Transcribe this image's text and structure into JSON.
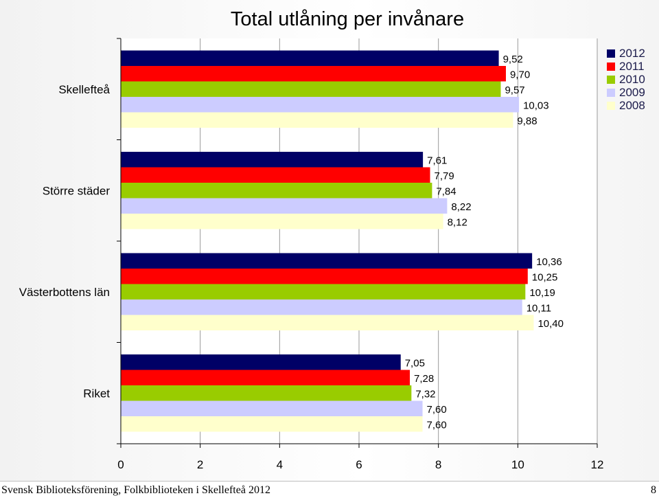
{
  "chart_data": {
    "type": "bar",
    "orientation": "horizontal",
    "title": "Total utlåning per invånare",
    "categories": [
      "Skellefteå",
      "Större städer",
      "Västerbottens län",
      "Riket"
    ],
    "series": [
      {
        "name": "2012",
        "color": "#000066",
        "values": [
          9.52,
          7.61,
          10.36,
          7.05
        ],
        "labels": [
          "9,52",
          "7,61",
          "10,36",
          "7,05"
        ]
      },
      {
        "name": "2011",
        "color": "#ff0000",
        "values": [
          9.7,
          7.79,
          10.25,
          7.28
        ],
        "labels": [
          "9,70",
          "7,79",
          "10,25",
          "7,28"
        ]
      },
      {
        "name": "2010",
        "color": "#99cc00",
        "values": [
          9.57,
          7.84,
          10.19,
          7.32
        ],
        "labels": [
          "9,57",
          "7,84",
          "10,19",
          "7,32"
        ]
      },
      {
        "name": "2009",
        "color": "#ccccff",
        "values": [
          10.03,
          8.22,
          10.11,
          7.6
        ],
        "labels": [
          "10,03",
          "8,22",
          "10,11",
          "7,60"
        ]
      },
      {
        "name": "2008",
        "color": "#ffffcc",
        "values": [
          9.88,
          8.12,
          10.4,
          7.6
        ],
        "labels": [
          "9,88",
          "8,12",
          "10,40",
          "7,60"
        ]
      }
    ],
    "xlim": [
      0,
      12
    ],
    "xticks": [
      0,
      2,
      4,
      6,
      8,
      10,
      12
    ],
    "xticklabels": [
      "0",
      "2",
      "4",
      "6",
      "8",
      "10",
      "12"
    ],
    "grid": "vertical",
    "legend": "top-right"
  },
  "footer": {
    "text": "Svensk Biblioteksförening, Folkbiblioteken i Skellefteå 2012",
    "page_number": "8"
  }
}
